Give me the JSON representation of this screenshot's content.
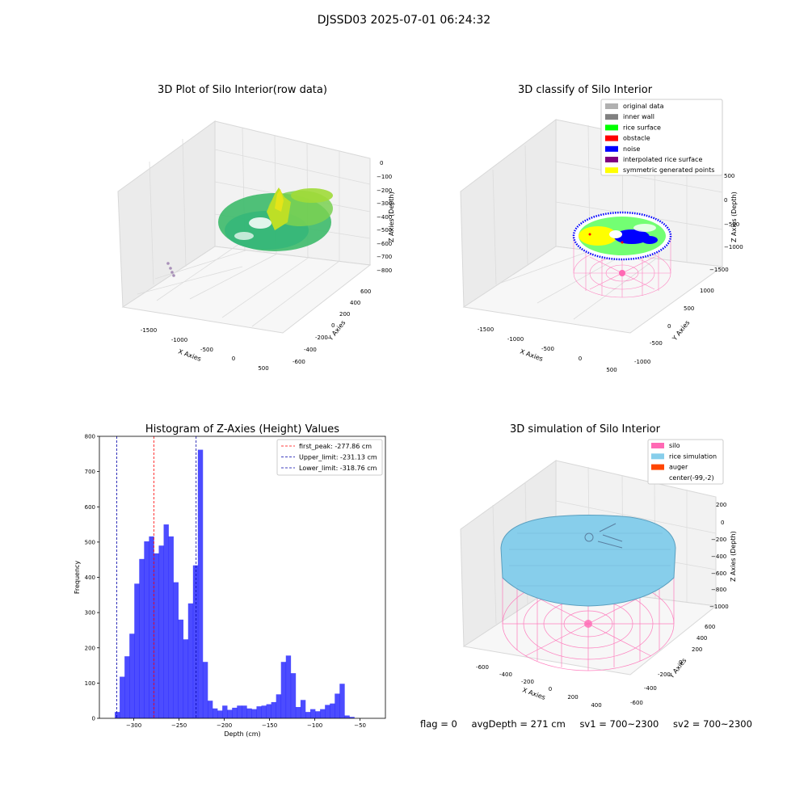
{
  "suptitle": "DJSSD03 2025-07-01 06:24:32",
  "plot1": {
    "title": "3D Plot of Silo Interior(row data)",
    "xlabel": "X Axies",
    "ylabel": "Y Axies",
    "zlabel": "Z Axies (Depth)",
    "xticks": [
      "-1500",
      "-1000",
      "-500",
      "0",
      "500"
    ],
    "yticks": [
      "-600",
      "-400",
      "-200",
      "0",
      "200",
      "400",
      "600"
    ],
    "zticks": [
      "0",
      "−100",
      "−200",
      "−300",
      "−400",
      "−500",
      "−600",
      "−700",
      "−800"
    ]
  },
  "plot2": {
    "title": "3D classify of Silo Interior",
    "xlabel": "X Axies",
    "ylabel": "Y Axies",
    "zlabel": "Z Axies (Depth)",
    "xticks": [
      "-1500",
      "-1000",
      "-500",
      "0",
      "500"
    ],
    "yticks": [
      "-1000",
      "-500",
      "0",
      "500",
      "1000"
    ],
    "zticks": [
      "500",
      "0",
      "−500",
      "−1000",
      "−1500"
    ],
    "legend": [
      {
        "label": "original data",
        "color": "#b0b0b0"
      },
      {
        "label": "inner wall",
        "color": "#808080"
      },
      {
        "label": "rice surface",
        "color": "#00ff00"
      },
      {
        "label": "obstacle",
        "color": "#ff0000"
      },
      {
        "label": "noise",
        "color": "#0000ff"
      },
      {
        "label": "interpolated rice surface",
        "color": "#800080"
      },
      {
        "label": "symmetric generated points",
        "color": "#ffff00"
      }
    ]
  },
  "plot4": {
    "title": "3D simulation of Silo Interior",
    "xlabel": "X Axies",
    "ylabel": "Y Axies",
    "zlabel": "Z Axies (Depth)",
    "xticks": [
      "-600",
      "-400",
      "-200",
      "0",
      "200",
      "400"
    ],
    "yticks": [
      "-600",
      "-400",
      "-200",
      "0",
      "200",
      "400",
      "600"
    ],
    "zticks": [
      "200",
      "0",
      "−200",
      "−400",
      "−600",
      "−800",
      "−1000"
    ],
    "legend": [
      {
        "label": "silo",
        "color": "#ff69b4"
      },
      {
        "label": "rice simulation",
        "color": "#87ceeb"
      },
      {
        "label": "auger",
        "color": "#ff4500"
      },
      {
        "label": "center(-99,-2)",
        "color": ""
      }
    ]
  },
  "footer": {
    "flag": "flag = 0",
    "avg": "avgDepth = 271 cm",
    "sv1": "sv1 = 700~2300",
    "sv2": "sv2 = 700~2300"
  },
  "chart_data": {
    "type": "bar",
    "title": "Histogram of Z-Axies (Height) Values",
    "xlabel": "Depth (cm)",
    "ylabel": "Frequency",
    "xlim": [
      -338,
      -22
    ],
    "ylim": [
      0,
      800
    ],
    "xticks": [
      -300,
      -250,
      -200,
      -150,
      -100,
      -50
    ],
    "yticks": [
      0,
      100,
      200,
      300,
      400,
      500,
      600,
      700,
      800
    ],
    "bin_start": -321,
    "bin_width": 5.4,
    "values": [
      18,
      118,
      176,
      240,
      382,
      452,
      502,
      516,
      468,
      490,
      550,
      516,
      386,
      280,
      224,
      326,
      434,
      762,
      160,
      50,
      28,
      22,
      36,
      24,
      30,
      36,
      36,
      28,
      26,
      34,
      36,
      40,
      46,
      68,
      160,
      178,
      128,
      32,
      52,
      18,
      26,
      20,
      26,
      38,
      42,
      70,
      98,
      8,
      4
    ],
    "bar_color": "#0000ff",
    "lines": [
      {
        "label": "first_peak: -277.86 cm",
        "x": -277.86,
        "color": "#ff0000"
      },
      {
        "label": "Upper_limit: -231.13 cm",
        "x": -231.13,
        "color": "#0000aa"
      },
      {
        "label": "Lower_limit: -318.76 cm",
        "x": -318.76,
        "color": "#0000aa"
      }
    ],
    "legend_position": "top-right"
  }
}
